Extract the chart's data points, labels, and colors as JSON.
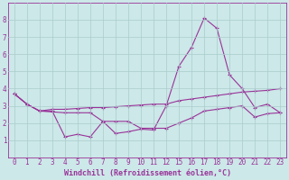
{
  "xlabel": "Windchill (Refroidissement éolien,°C)",
  "bg_color": "#cce8e8",
  "grid_color": "#aacccc",
  "line_color": "#993399",
  "spine_color": "#993399",
  "xlim": [
    -0.5,
    23.5
  ],
  "ylim": [
    0,
    9
  ],
  "xticks": [
    0,
    1,
    2,
    3,
    4,
    5,
    6,
    7,
    8,
    9,
    10,
    11,
    12,
    15,
    16,
    17,
    18,
    19,
    20,
    21,
    22,
    23
  ],
  "yticks": [
    1,
    2,
    3,
    4,
    5,
    6,
    7,
    8
  ],
  "line1_x": [
    0,
    1,
    2,
    3,
    4,
    5,
    6,
    7,
    8,
    9,
    10,
    11,
    12,
    15,
    16,
    17,
    18,
    19,
    20,
    21,
    22,
    23
  ],
  "line1_y": [
    3.7,
    3.1,
    2.7,
    2.7,
    1.2,
    1.35,
    1.2,
    2.1,
    1.4,
    1.5,
    1.65,
    1.6,
    3.0,
    5.3,
    6.4,
    8.1,
    7.5,
    4.8,
    4.0,
    2.9,
    3.1,
    2.6
  ],
  "line2_x": [
    0,
    1,
    2,
    3,
    4,
    5,
    6,
    7,
    8,
    9,
    10,
    11,
    12,
    15,
    16,
    17,
    18,
    19,
    20,
    21,
    22,
    23
  ],
  "line2_y": [
    3.7,
    3.1,
    2.7,
    2.8,
    2.8,
    2.85,
    2.9,
    2.9,
    2.95,
    3.0,
    3.05,
    3.1,
    3.1,
    3.3,
    3.4,
    3.5,
    3.6,
    3.7,
    3.8,
    3.85,
    3.9,
    4.0
  ],
  "line3_x": [
    0,
    1,
    2,
    3,
    4,
    5,
    6,
    7,
    8,
    9,
    10,
    11,
    12,
    15,
    16,
    17,
    18,
    19,
    20,
    21,
    22,
    23
  ],
  "line3_y": [
    3.7,
    3.1,
    2.7,
    2.65,
    2.6,
    2.6,
    2.6,
    2.1,
    2.1,
    2.1,
    1.7,
    1.7,
    1.7,
    2.0,
    2.3,
    2.7,
    2.8,
    2.9,
    3.0,
    2.35,
    2.55,
    2.6
  ],
  "tick_fontsize": 5.5,
  "xlabel_fontsize": 6.0
}
